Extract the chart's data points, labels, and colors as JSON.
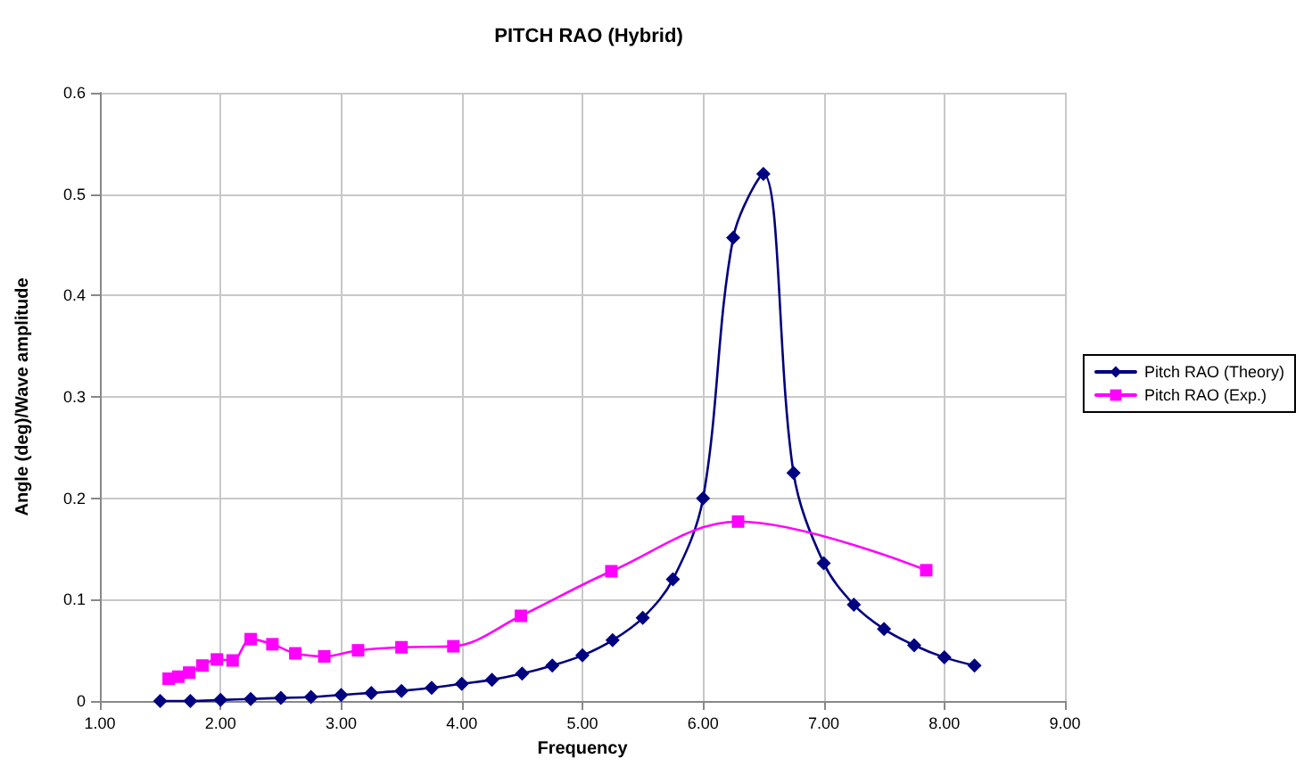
{
  "chart_data": {
    "type": "line",
    "title": "PITCH RAO (Hybrid)",
    "xlabel": "Frequency",
    "ylabel": "Angle (deg)/Wave amplitude",
    "xlim": [
      1,
      9
    ],
    "xticks": [
      {
        "value": 1,
        "label": "1.00"
      },
      {
        "value": 2,
        "label": "2.00"
      },
      {
        "value": 3,
        "label": "3.00"
      },
      {
        "value": 4,
        "label": "4.00"
      },
      {
        "value": 5,
        "label": "5.00"
      },
      {
        "value": 6,
        "label": "6.00"
      },
      {
        "value": 7,
        "label": "7.00"
      },
      {
        "value": 8,
        "label": "8.00"
      },
      {
        "value": 9,
        "label": "9.00"
      }
    ],
    "ylim": [
      0,
      0.6
    ],
    "yticks": [
      0,
      0.1,
      0.2,
      0.3,
      0.4,
      0.5,
      0.6
    ],
    "grid": true,
    "legend": "right",
    "line_style": "solid",
    "series": [
      {
        "name": "Pitch RAO (Theory)",
        "color": "#000080",
        "marker": "diamond",
        "x": [
          1.5,
          1.75,
          2.0,
          2.25,
          2.5,
          2.75,
          3.0,
          3.25,
          3.5,
          3.75,
          4.0,
          4.25,
          4.5,
          4.75,
          5.0,
          5.25,
          5.5,
          5.75,
          6.0,
          6.25,
          6.5,
          6.75,
          7.0,
          7.25,
          7.5,
          7.75,
          8.0,
          8.25
        ],
        "values": [
          0,
          0,
          0.001,
          0.002,
          0.003,
          0.004,
          0.006,
          0.008,
          0.01,
          0.013,
          0.017,
          0.021,
          0.027,
          0.035,
          0.045,
          0.06,
          0.082,
          0.12,
          0.2,
          0.457,
          0.52,
          0.225,
          0.136,
          0.095,
          0.071,
          0.055,
          0.043,
          0.035
        ]
      },
      {
        "name": "Pitch RAO (Exp.)",
        "color": "#ff00ff",
        "marker": "square",
        "x": [
          1.57,
          1.65,
          1.74,
          1.85,
          1.97,
          2.1,
          2.25,
          2.43,
          2.62,
          2.86,
          3.14,
          3.5,
          3.93,
          4.49,
          5.24,
          6.29,
          7.85
        ],
        "values": [
          0.022,
          0.024,
          0.028,
          0.035,
          0.041,
          0.04,
          0.061,
          0.056,
          0.047,
          0.044,
          0.05,
          0.053,
          0.054,
          0.084,
          0.128,
          0.177,
          0.129
        ]
      }
    ]
  }
}
